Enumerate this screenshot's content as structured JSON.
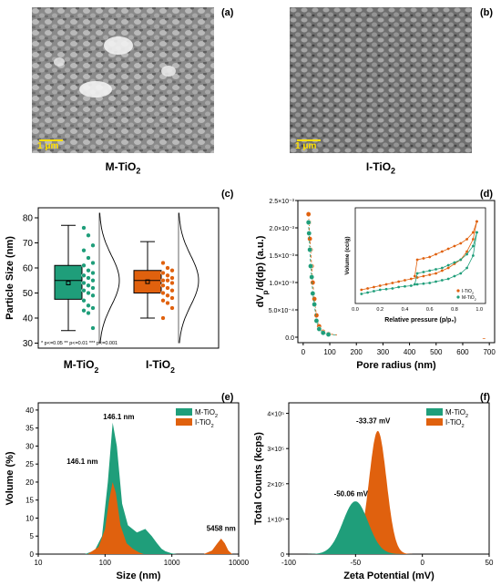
{
  "panels": {
    "a": {
      "letter": "(a)",
      "caption_main": "M-TiO",
      "caption_sub": "2",
      "scale_bar": "1 μm"
    },
    "b": {
      "letter": "(b)",
      "caption_main": "I-TiO",
      "caption_sub": "2",
      "scale_bar": "1 μm"
    },
    "c": {
      "letter": "(c)"
    },
    "d": {
      "letter": "(d)"
    },
    "e": {
      "letter": "(e)"
    },
    "f": {
      "letter": "(f)"
    }
  },
  "colors": {
    "m_tio2": "#1f9e7a",
    "i_tio2": "#e0610e",
    "sem_bg": "#8d8d8d",
    "scale": "#ffe000"
  },
  "chart_data": [
    {
      "panel": "c",
      "type": "box",
      "ylabel": "Particle Size (nm)",
      "ylim": [
        28,
        84
      ],
      "yticks": [
        "30",
        "40",
        "50",
        "60",
        "70",
        "80"
      ],
      "categories": [
        {
          "main": "M-TiO",
          "sub": "2"
        },
        {
          "main": "I-TiO",
          "sub": "2"
        }
      ],
      "boxes": [
        {
          "min": 35,
          "q1": 47.5,
          "median": 55,
          "q3": 61,
          "max": 77,
          "mean": 54
        },
        {
          "min": 40,
          "q1": 50,
          "median": 55,
          "q3": 59,
          "max": 70.5,
          "mean": 54.5
        }
      ],
      "points": [
        [
          76,
          73,
          69,
          67,
          64,
          62,
          61,
          59,
          58,
          57,
          56,
          55,
          54,
          53,
          52,
          51,
          50,
          49,
          47,
          45,
          44,
          43,
          42,
          36
        ],
        [
          62,
          60,
          59,
          58,
          57,
          56,
          55,
          55,
          54,
          53,
          52,
          51,
          50,
          49,
          48,
          47,
          46,
          44,
          40
        ]
      ],
      "significance": [
        "* p<=0.05",
        "** p<=0.01",
        "*** p<=0.001"
      ]
    },
    {
      "panel": "d",
      "type": "scatter",
      "xlabel": "Pore radius (nm)",
      "ylabel_main": "dV",
      "ylabel_sub": "p",
      "ylabel_rest": "/d(dp) (a.u.)",
      "xlim": [
        -20,
        720
      ],
      "xticks": [
        "0",
        "100",
        "200",
        "300",
        "400",
        "500",
        "600",
        "700"
      ],
      "ylim": [
        -0.0001,
        0.0025
      ],
      "yticks": [
        "0.0",
        "5.0×10⁻⁴",
        "1.0×10⁻³",
        "1.5×10⁻³",
        "2.0×10⁻³",
        "2.5×10⁻³"
      ],
      "series": [
        {
          "name_main": "I-TiO",
          "name_sub": "2",
          "x": [
            20,
            22,
            25,
            28,
            32,
            36,
            42,
            50,
            60,
            75,
            95,
            150,
            680
          ],
          "y": [
            0.00225,
            0.0021,
            0.0018,
            0.0016,
            0.0013,
            0.001,
            0.0007,
            0.0004,
            0.0002,
            0.0001,
            6e-05,
            3e-05,
            1e-05
          ]
        },
        {
          "name_main": "M-TiO",
          "name_sub": "2",
          "x": [
            20,
            22,
            25,
            28,
            32,
            36,
            42,
            50,
            60,
            75,
            95,
            150,
            600
          ],
          "y": [
            0.0021,
            0.0019,
            0.0016,
            0.0013,
            0.0011,
            0.0008,
            0.0006,
            0.0003,
            0.00015,
            8e-05,
            5e-05,
            3e-05,
            3e-05
          ]
        }
      ],
      "inset": {
        "xlabel": "Relative pressure (p/p₀)",
        "ylabel": "Volume (cc/g)",
        "xticks": [
          "0.0",
          "0.2",
          "0.4",
          "0.6",
          "0.8",
          "1.0"
        ],
        "xlim": [
          0,
          1.05
        ],
        "ylim": [
          0,
          70
        ],
        "series": [
          {
            "name_main": "I-TiO",
            "name_sub": "2",
            "ads_x": [
              0.05,
              0.1,
              0.15,
              0.2,
              0.25,
              0.3,
              0.35,
              0.4,
              0.45,
              0.5,
              0.55,
              0.6,
              0.65,
              0.7,
              0.75,
              0.8,
              0.85,
              0.9,
              0.95,
              0.98
            ],
            "ads_y": [
              10,
              11,
              12,
              13,
              14,
              15,
              16,
              17,
              18,
              19,
              20,
              21,
              22,
              24,
              26,
              29,
              32,
              38,
              47,
              60
            ],
            "des_x": [
              0.98,
              0.95,
              0.9,
              0.85,
              0.8,
              0.75,
              0.7,
              0.65,
              0.6,
              0.55,
              0.5,
              0.48
            ],
            "des_y": [
              60,
              52,
              47,
              44,
              42,
              40,
              38,
              36,
              34,
              33,
              32,
              20
            ]
          },
          {
            "name_main": "M-TiO",
            "name_sub": "2",
            "ads_x": [
              0.05,
              0.1,
              0.15,
              0.2,
              0.25,
              0.3,
              0.35,
              0.4,
              0.45,
              0.5,
              0.55,
              0.6,
              0.65,
              0.7,
              0.75,
              0.8,
              0.85,
              0.9,
              0.95,
              0.98
            ],
            "ads_y": [
              7,
              8,
              9,
              10,
              10.5,
              11,
              12,
              12.5,
              13,
              14,
              14.5,
              15,
              16,
              17,
              18,
              20,
              22,
              26,
              35,
              52
            ],
            "des_x": [
              0.98,
              0.95,
              0.9,
              0.85,
              0.8,
              0.75,
              0.7,
              0.65,
              0.6,
              0.55,
              0.5,
              0.48
            ],
            "des_y": [
              52,
              42,
              36,
              32,
              30,
              28,
              26,
              25,
              24,
              23,
              22,
              14
            ]
          }
        ]
      }
    },
    {
      "panel": "e",
      "type": "area",
      "xlabel": "Size (nm)",
      "ylabel": "Volume (%)",
      "xscale": "log",
      "xlim": [
        10,
        10000
      ],
      "xticks": [
        "10",
        "100",
        "1000",
        "10000"
      ],
      "ylim": [
        0,
        42
      ],
      "yticks": [
        "0",
        "5",
        "10",
        "15",
        "20",
        "25",
        "30",
        "35",
        "40"
      ],
      "series": [
        {
          "name_main": "M-TiO",
          "name_sub": "2",
          "x": [
            50,
            70,
            90,
            110,
            130,
            150,
            180,
            220,
            300,
            400,
            500,
            600,
            700,
            800,
            1000,
            1200
          ],
          "y": [
            0,
            1,
            5,
            20,
            36.5,
            30,
            14,
            8,
            6,
            7,
            5,
            3,
            1.5,
            0.8,
            0.2,
            0
          ]
        },
        {
          "name_main": "I-TiO",
          "name_sub": "2",
          "x": [
            55,
            80,
            100,
            115,
            130,
            145,
            170,
            210,
            260,
            320,
            380,
            3000,
            4000,
            4800,
            5458,
            6200,
            7000,
            8000
          ],
          "y": [
            0,
            2,
            7,
            15,
            20,
            17,
            8,
            3,
            1.5,
            0.5,
            0,
            0,
            1,
            3,
            4.3,
            3,
            1,
            0
          ]
        }
      ],
      "annotations": [
        "146.1 nm",
        "146.1 nm",
        "5458 nm"
      ]
    },
    {
      "panel": "f",
      "type": "area",
      "xlabel": "Zeta Potential (mV)",
      "ylabel": "Total Counts (kcps)",
      "xlim": [
        -100,
        50
      ],
      "xticks": [
        "-100",
        "-50",
        "0",
        "50"
      ],
      "ylim": [
        0,
        430000
      ],
      "yticks": [
        "0",
        "1×10⁵",
        "2×10⁵",
        "3×10⁵",
        "4×10⁵"
      ],
      "series": [
        {
          "name_main": "M-TiO",
          "name_sub": "2",
          "mean": -50.06,
          "sd": 9.5,
          "peak": 150000
        },
        {
          "name_main": "I-TiO",
          "name_sub": "2",
          "mean": -33.37,
          "sd": 6.5,
          "peak": 350000
        }
      ],
      "annotations": [
        "-50.06 mV",
        "-33.37 mV"
      ]
    }
  ]
}
